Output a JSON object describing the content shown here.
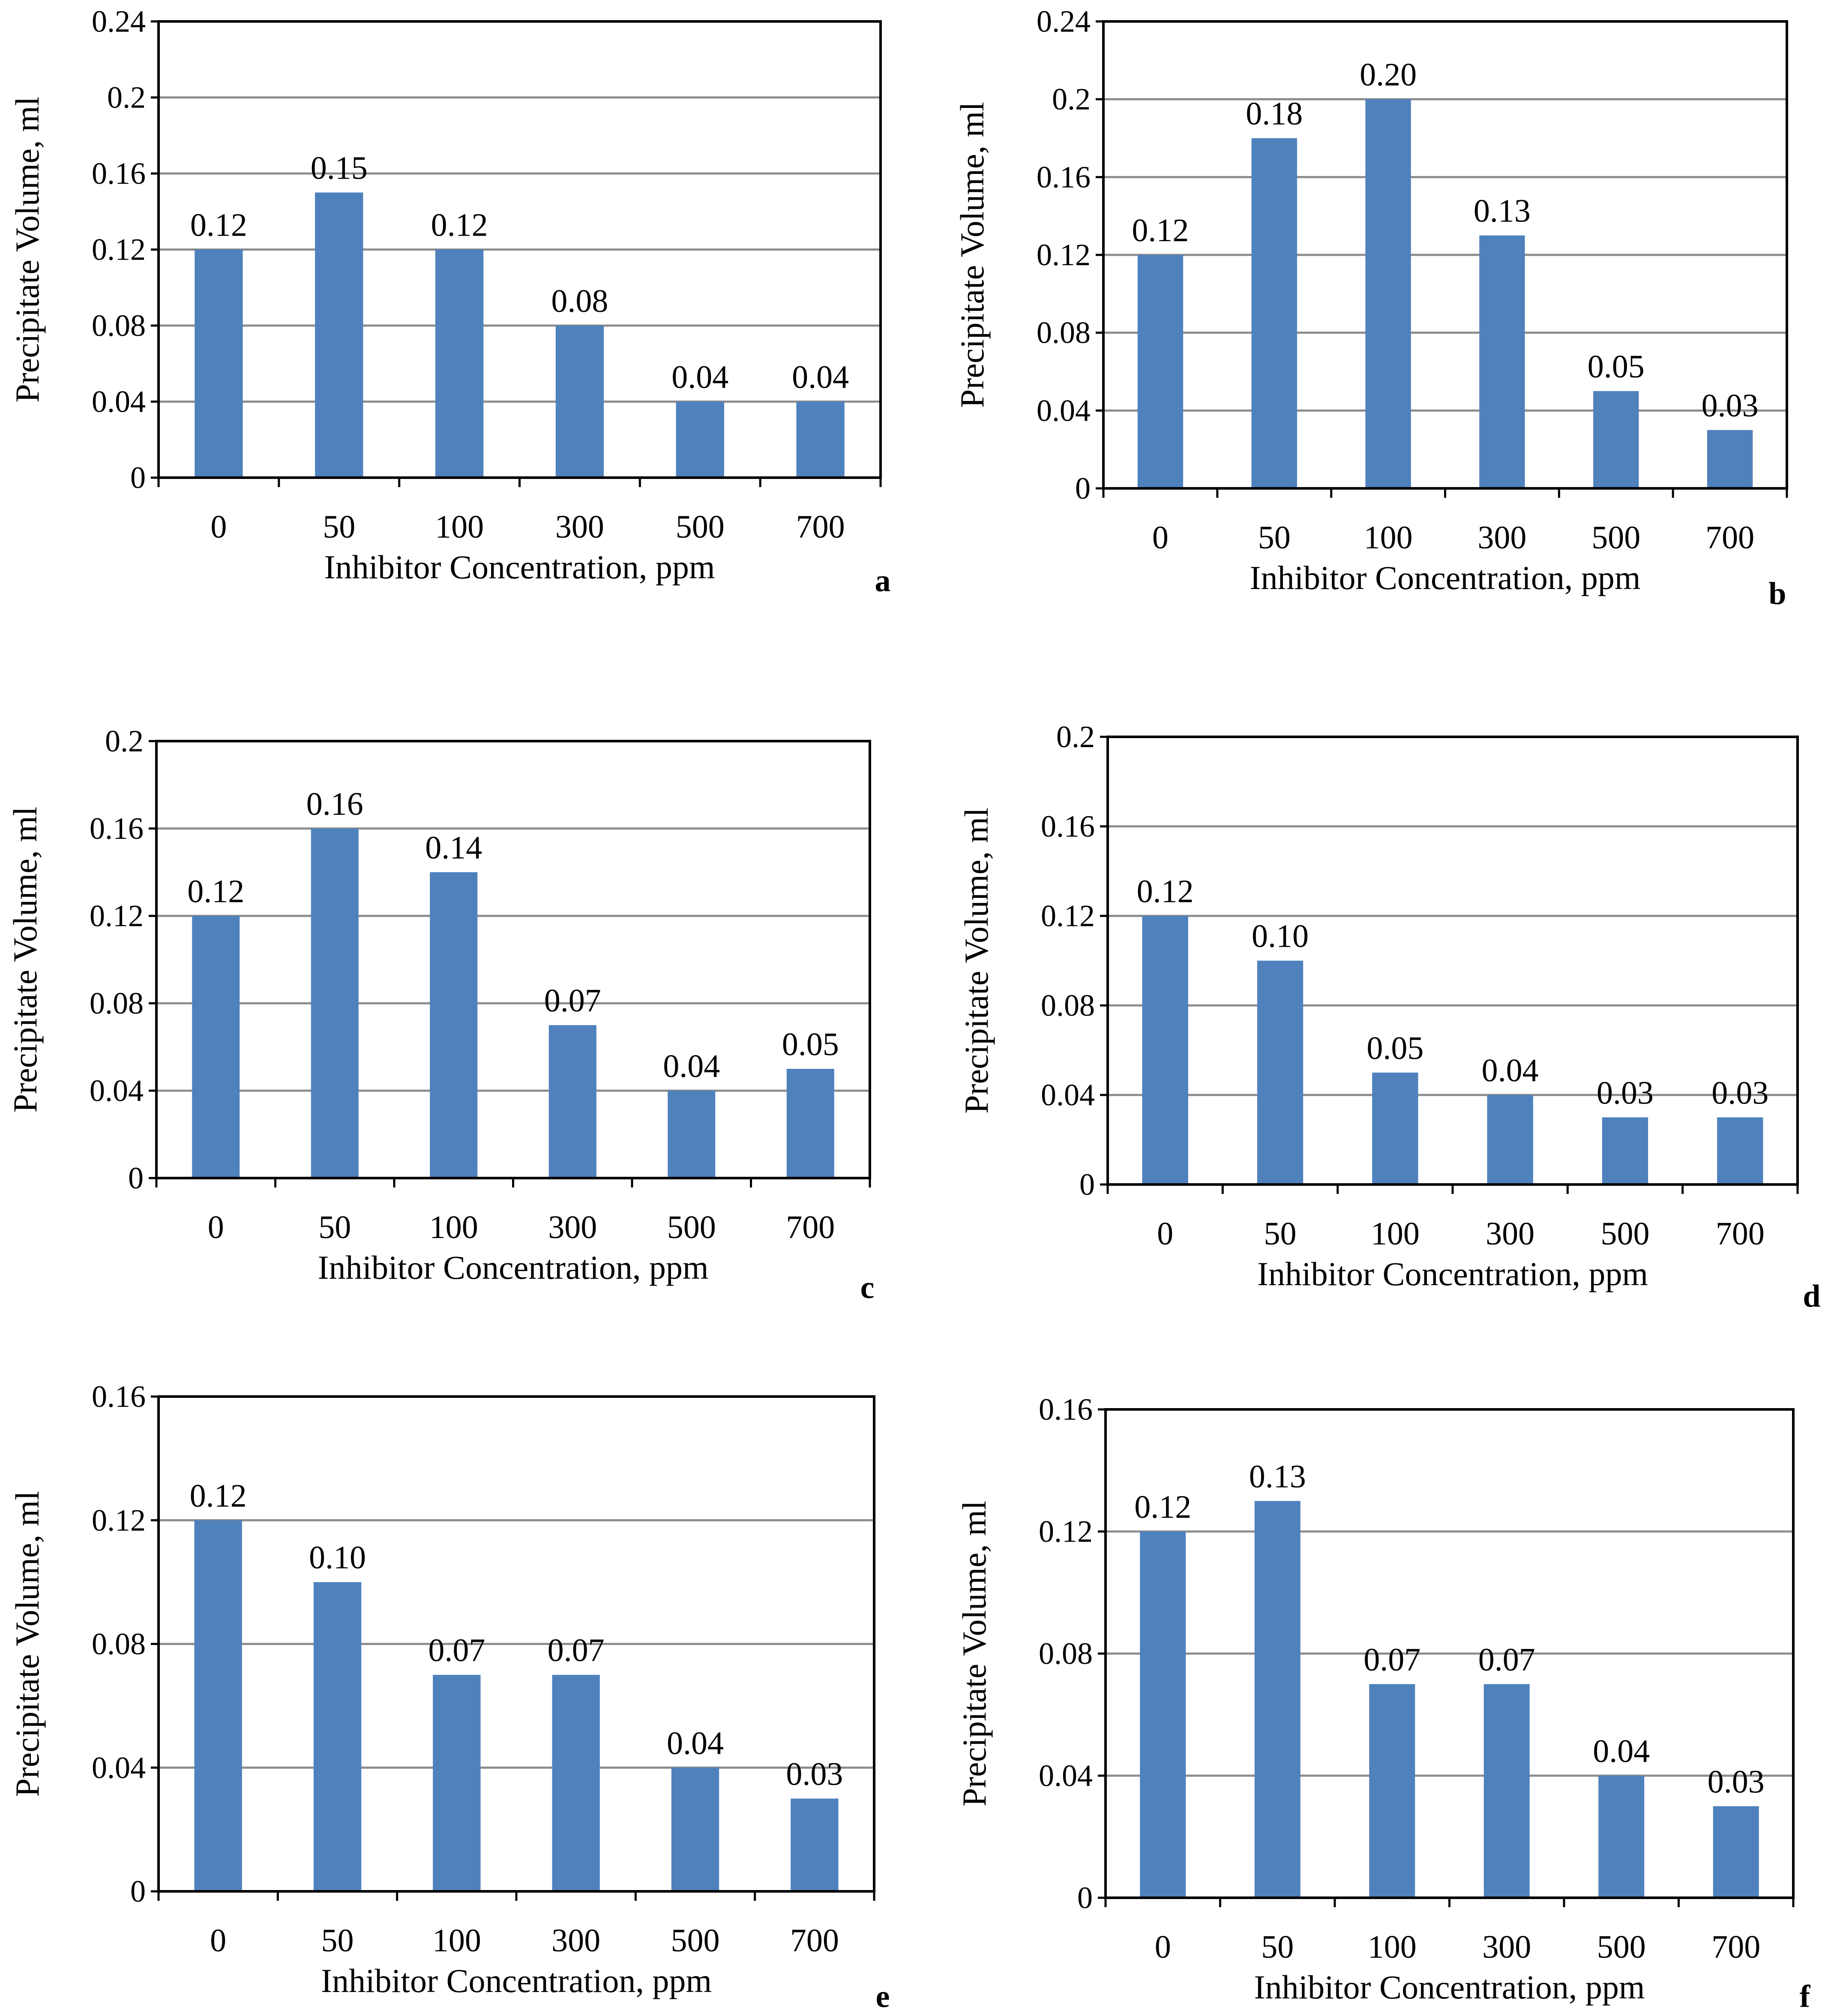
{
  "figure": {
    "bar_color": "#4f81bd",
    "gridline_color": "#8c8c8c",
    "frame_color": "#000000"
  },
  "chart_data": [
    {
      "type": "bar",
      "panel_label": "a",
      "categories": [
        "0",
        "50",
        "100",
        "300",
        "500",
        "700"
      ],
      "values": [
        0.12,
        0.15,
        0.12,
        0.08,
        0.04,
        0.04
      ],
      "data_labels": [
        "0.12",
        "0.15",
        "0.12",
        "0.08",
        "0.04",
        "0.04"
      ],
      "xlabel": "Inhibitor Concentration, ppm",
      "ylabel": "Precipitate Volume, ml",
      "ylim": [
        0,
        0.24
      ],
      "yticks": [
        "0",
        "0.04",
        "0.08",
        "0.12",
        "0.16",
        "0.2",
        "0.24"
      ],
      "grid": true
    },
    {
      "type": "bar",
      "panel_label": "b",
      "categories": [
        "0",
        "50",
        "100",
        "300",
        "500",
        "700"
      ],
      "values": [
        0.12,
        0.18,
        0.2,
        0.13,
        0.05,
        0.03
      ],
      "data_labels": [
        "0.12",
        "0.18",
        "0.20",
        "0.13",
        "0.05",
        "0.03"
      ],
      "xlabel": "Inhibitor Concentration, ppm",
      "ylabel": "Precipitate Volume, ml",
      "ylim": [
        0,
        0.24
      ],
      "yticks": [
        "0",
        "0.04",
        "0.08",
        "0.12",
        "0.16",
        "0.2",
        "0.24"
      ],
      "grid": true
    },
    {
      "type": "bar",
      "panel_label": "c",
      "categories": [
        "0",
        "50",
        "100",
        "300",
        "500",
        "700"
      ],
      "values": [
        0.12,
        0.16,
        0.14,
        0.07,
        0.04,
        0.05
      ],
      "data_labels": [
        "0.12",
        "0.16",
        "0.14",
        "0.07",
        "0.04",
        "0.05"
      ],
      "xlabel": "Inhibitor Concentration, ppm",
      "ylabel": "Precipitate Volume, ml",
      "ylim": [
        0,
        0.2
      ],
      "yticks": [
        "0",
        "0.04",
        "0.08",
        "0.12",
        "0.16",
        "0.2"
      ],
      "grid": true
    },
    {
      "type": "bar",
      "panel_label": "d",
      "categories": [
        "0",
        "50",
        "100",
        "300",
        "500",
        "700"
      ],
      "values": [
        0.12,
        0.1,
        0.05,
        0.04,
        0.03,
        0.03
      ],
      "data_labels": [
        "0.12",
        "0.10",
        "0.05",
        "0.04",
        "0.03",
        "0.03"
      ],
      "xlabel": "Inhibitor Concentration, ppm",
      "ylabel": "Precipitate Volume, ml",
      "ylim": [
        0,
        0.2
      ],
      "yticks": [
        "0",
        "0.04",
        "0.08",
        "0.12",
        "0.16",
        "0.2"
      ],
      "grid": true
    },
    {
      "type": "bar",
      "panel_label": "e",
      "categories": [
        "0",
        "50",
        "100",
        "300",
        "500",
        "700"
      ],
      "values": [
        0.12,
        0.1,
        0.07,
        0.07,
        0.04,
        0.03
      ],
      "data_labels": [
        "0.12",
        "0.10",
        "0.07",
        "0.07",
        "0.04",
        "0.03"
      ],
      "xlabel": "Inhibitor Concentration, ppm",
      "ylabel": "Precipitate Volume, ml",
      "ylim": [
        0,
        0.16
      ],
      "yticks": [
        "0",
        "0.04",
        "0.08",
        "0.12",
        "0.16"
      ],
      "grid": true
    },
    {
      "type": "bar",
      "panel_label": "f",
      "categories": [
        "0",
        "50",
        "100",
        "300",
        "500",
        "700"
      ],
      "values": [
        0.12,
        0.13,
        0.07,
        0.07,
        0.04,
        0.03
      ],
      "data_labels": [
        "0.12",
        "0.13",
        "0.07",
        "0.07",
        "0.04",
        "0.03"
      ],
      "xlabel": "Inhibitor Concentration, ppm",
      "ylabel": "Precipitate Volume, ml",
      "ylim": [
        0,
        0.16
      ],
      "yticks": [
        "0",
        "0.04",
        "0.08",
        "0.12",
        "0.16"
      ],
      "grid": true
    }
  ]
}
